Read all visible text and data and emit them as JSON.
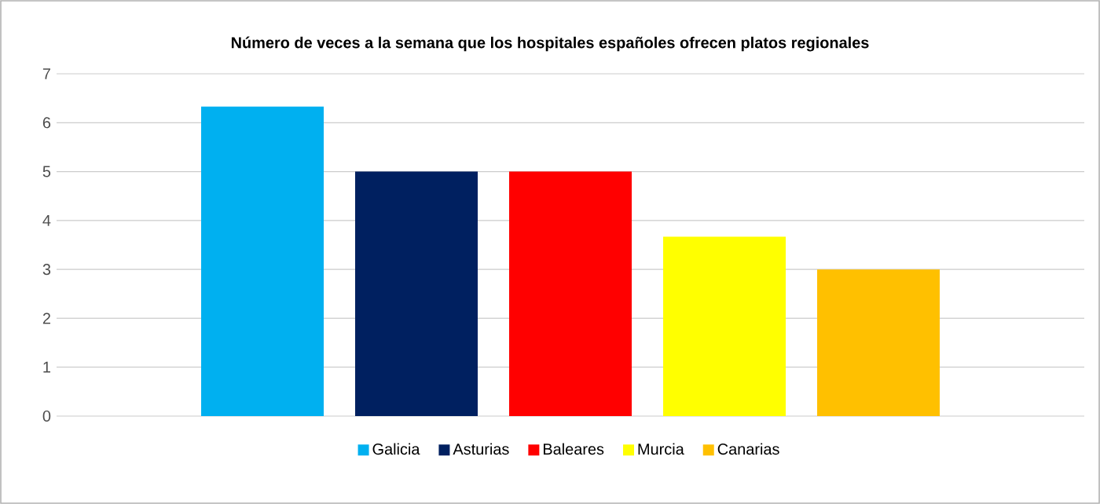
{
  "chart_data": {
    "type": "bar",
    "title": "Número de veces a la semana que los hospitales españoles ofrecen platos regionales",
    "categories": [
      null
    ],
    "series": [
      {
        "name": "Galicia",
        "color": "#00b0f0",
        "values": [
          6.33
        ]
      },
      {
        "name": "Asturias",
        "color": "#002060",
        "values": [
          5
        ]
      },
      {
        "name": "Baleares",
        "color": "#ff0000",
        "values": [
          5
        ]
      },
      {
        "name": "Murcia",
        "color": "#ffff00",
        "values": [
          3.67
        ]
      },
      {
        "name": "Canarias",
        "color": "#ffc000",
        "values": [
          3
        ]
      }
    ],
    "ylim": [
      0,
      7
    ],
    "yticks": [
      0,
      1,
      2,
      3,
      4,
      5,
      6,
      7
    ],
    "grid": "y",
    "legend": "bottom",
    "tick_labels": "y"
  }
}
